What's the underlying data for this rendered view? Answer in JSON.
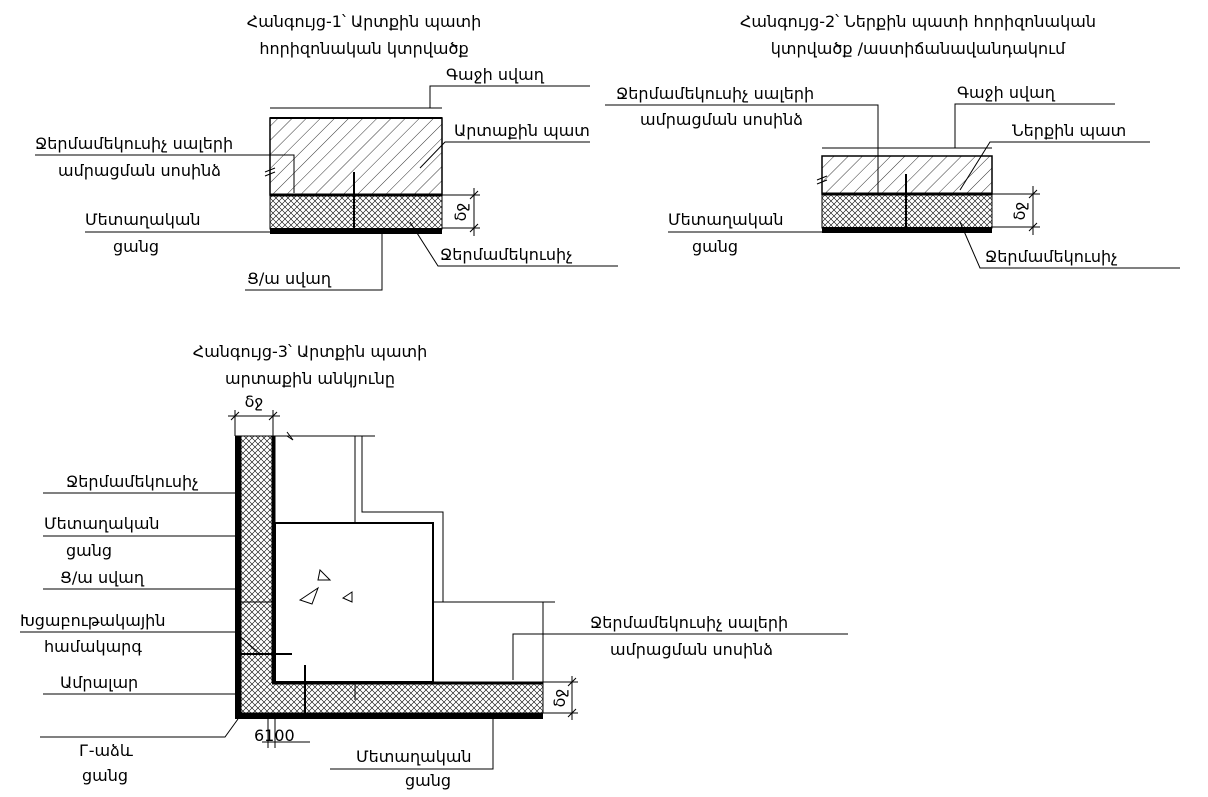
{
  "detail1": {
    "title_line1": "Հանգույց-1՝ Արտքին պատի",
    "title_line2": "հորիզոնական կտրվածք",
    "label_glue_layer": "Գաջի սվաղ",
    "label_outer_wall": "Արտաքին պատ",
    "label_anchor_line1": "Ջերմամեկուսիչ սալերի",
    "label_anchor_line2": "ամրացման սոսինձ",
    "label_mesh_line1": "Մետաղական",
    "label_mesh_line2": "ցանց",
    "label_insulation": "Ջերմամեկուսիչ",
    "label_render": "Ց/ա սվաղ",
    "dim_label": "δջ"
  },
  "detail2": {
    "title_line1": "Հանգույց-2՝ Ներքին պատի հորիզոնական",
    "title_line2": "կտրվածք /աստիճանավանդակում",
    "label_anchor_line1": "Ջերմամեկուսիչ սալերի",
    "label_anchor_line2": "ամրացման սոսինձ",
    "label_glue_layer": "Գաջի սվաղ",
    "label_inner_wall": "Ներքին պատ",
    "label_mesh_line1": "Մետաղական",
    "label_mesh_line2": "ցանց",
    "label_insulation": "Ջերմամեկուսիչ",
    "dim_label": "δջ"
  },
  "detail3": {
    "title_line1": "Հանգույց-3՝ Արտքին պատի",
    "title_line2": "արտաքին անկյունը",
    "dim_top": "δջ",
    "label_insulation": "Ջերմամեկուսիչ",
    "label_mesh_line1": "Մետաղական",
    "label_mesh_line2": "ցանց",
    "label_render": "Ց/ա սվաղ",
    "label_fastener_line1": "Խցաբութակային",
    "label_fastener_line2": "համակարգ",
    "label_anchor": "Ամրալար",
    "label_lmesh_line1": "Г-աձև",
    "label_lmesh_line2": "ցանց",
    "dim_bottom": "6100",
    "label_adhesive_line1": "Ջերմամեկուսիչ սալերի",
    "label_adhesive_line2": "ամրացման սոսինձ",
    "dim_right": "δջ",
    "label_mesh_bottom_line1": "Մետաղական",
    "label_mesh_bottom_line2": "ցանց"
  }
}
